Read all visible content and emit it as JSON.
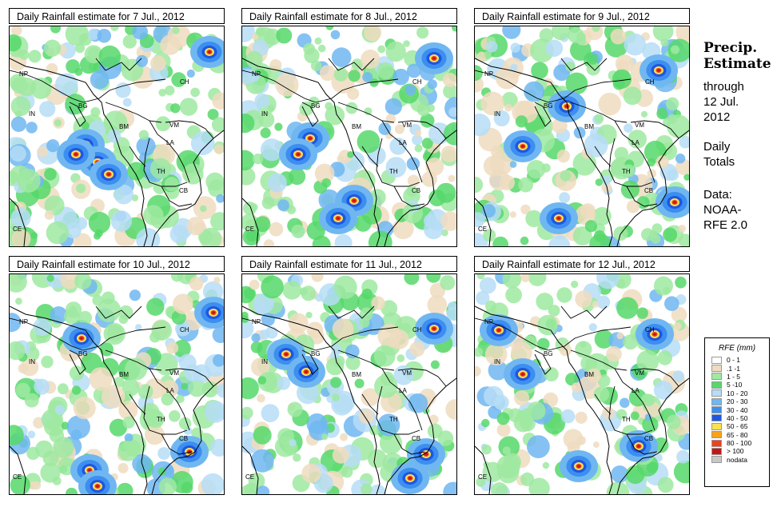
{
  "panels": [
    {
      "title": "Daily Rainfall estimate for  7 Jul., 2012",
      "storms": [
        [
          95,
          148
        ],
        [
          110,
          170
        ],
        [
          124,
          185
        ],
        [
          250,
          32
        ],
        [
          83,
          160
        ]
      ]
    },
    {
      "title": "Daily Rainfall estimate for  8 Jul., 2012",
      "storms": [
        [
          85,
          140
        ],
        [
          140,
          218
        ],
        [
          120,
          240
        ],
        [
          240,
          40
        ],
        [
          70,
          160
        ]
      ]
    },
    {
      "title": "Daily Rainfall estimate for  9 Jul., 2012",
      "storms": [
        [
          60,
          150
        ],
        [
          230,
          55
        ],
        [
          115,
          100
        ],
        [
          250,
          220
        ],
        [
          105,
          240
        ]
      ]
    },
    {
      "title": "Daily Rainfall estimate for  10 Jul., 2012",
      "storms": [
        [
          90,
          80
        ],
        [
          255,
          48
        ],
        [
          100,
          245
        ],
        [
          225,
          222
        ],
        [
          110,
          265
        ]
      ]
    },
    {
      "title": "Daily Rainfall estimate for  11 Jul., 2012",
      "storms": [
        [
          240,
          68
        ],
        [
          55,
          100
        ],
        [
          80,
          122
        ],
        [
          230,
          225
        ],
        [
          210,
          255
        ]
      ]
    },
    {
      "title": "Daily Rainfall estimate for  12 Jul., 2012",
      "storms": [
        [
          225,
          75
        ],
        [
          30,
          70
        ],
        [
          60,
          125
        ],
        [
          205,
          215
        ],
        [
          130,
          240
        ]
      ]
    }
  ],
  "countries": [
    "NP",
    "IN",
    "BG",
    "BM",
    "CH",
    "VM",
    "LA",
    "TH",
    "CB",
    "CE"
  ],
  "side": {
    "title_line1": "Precip.",
    "title_line2": "Estimate",
    "through": "through",
    "date1": "12 Jul.",
    "date2": "2012",
    "daily1": "Daily",
    "daily2": "Totals",
    "data1": "Data:",
    "data2": "NOAA-",
    "data3": "RFE 2.0"
  },
  "legend": {
    "title": "RFE (mm)",
    "items": [
      {
        "label": "0 - 1",
        "color": "#ffffff"
      },
      {
        "label": ".1 -1",
        "color": "#efdcc0"
      },
      {
        "label": "1 - 5",
        "color": "#9fe9a1"
      },
      {
        "label": "5 -10",
        "color": "#56d86a"
      },
      {
        "label": "10 - 20",
        "color": "#b6ddf6"
      },
      {
        "label": "20 - 30",
        "color": "#70b7f1"
      },
      {
        "label": "30 - 40",
        "color": "#3c8ef0"
      },
      {
        "label": "40 - 50",
        "color": "#1d57e3"
      },
      {
        "label": "50 - 65",
        "color": "#fbe251"
      },
      {
        "label": "65 - 80",
        "color": "#f7a21a"
      },
      {
        "label": "80 - 100",
        "color": "#f0401c"
      },
      {
        "label": "> 100",
        "color": "#c11717"
      },
      {
        "label": "nodata",
        "color": "#c8c8c8"
      }
    ]
  }
}
